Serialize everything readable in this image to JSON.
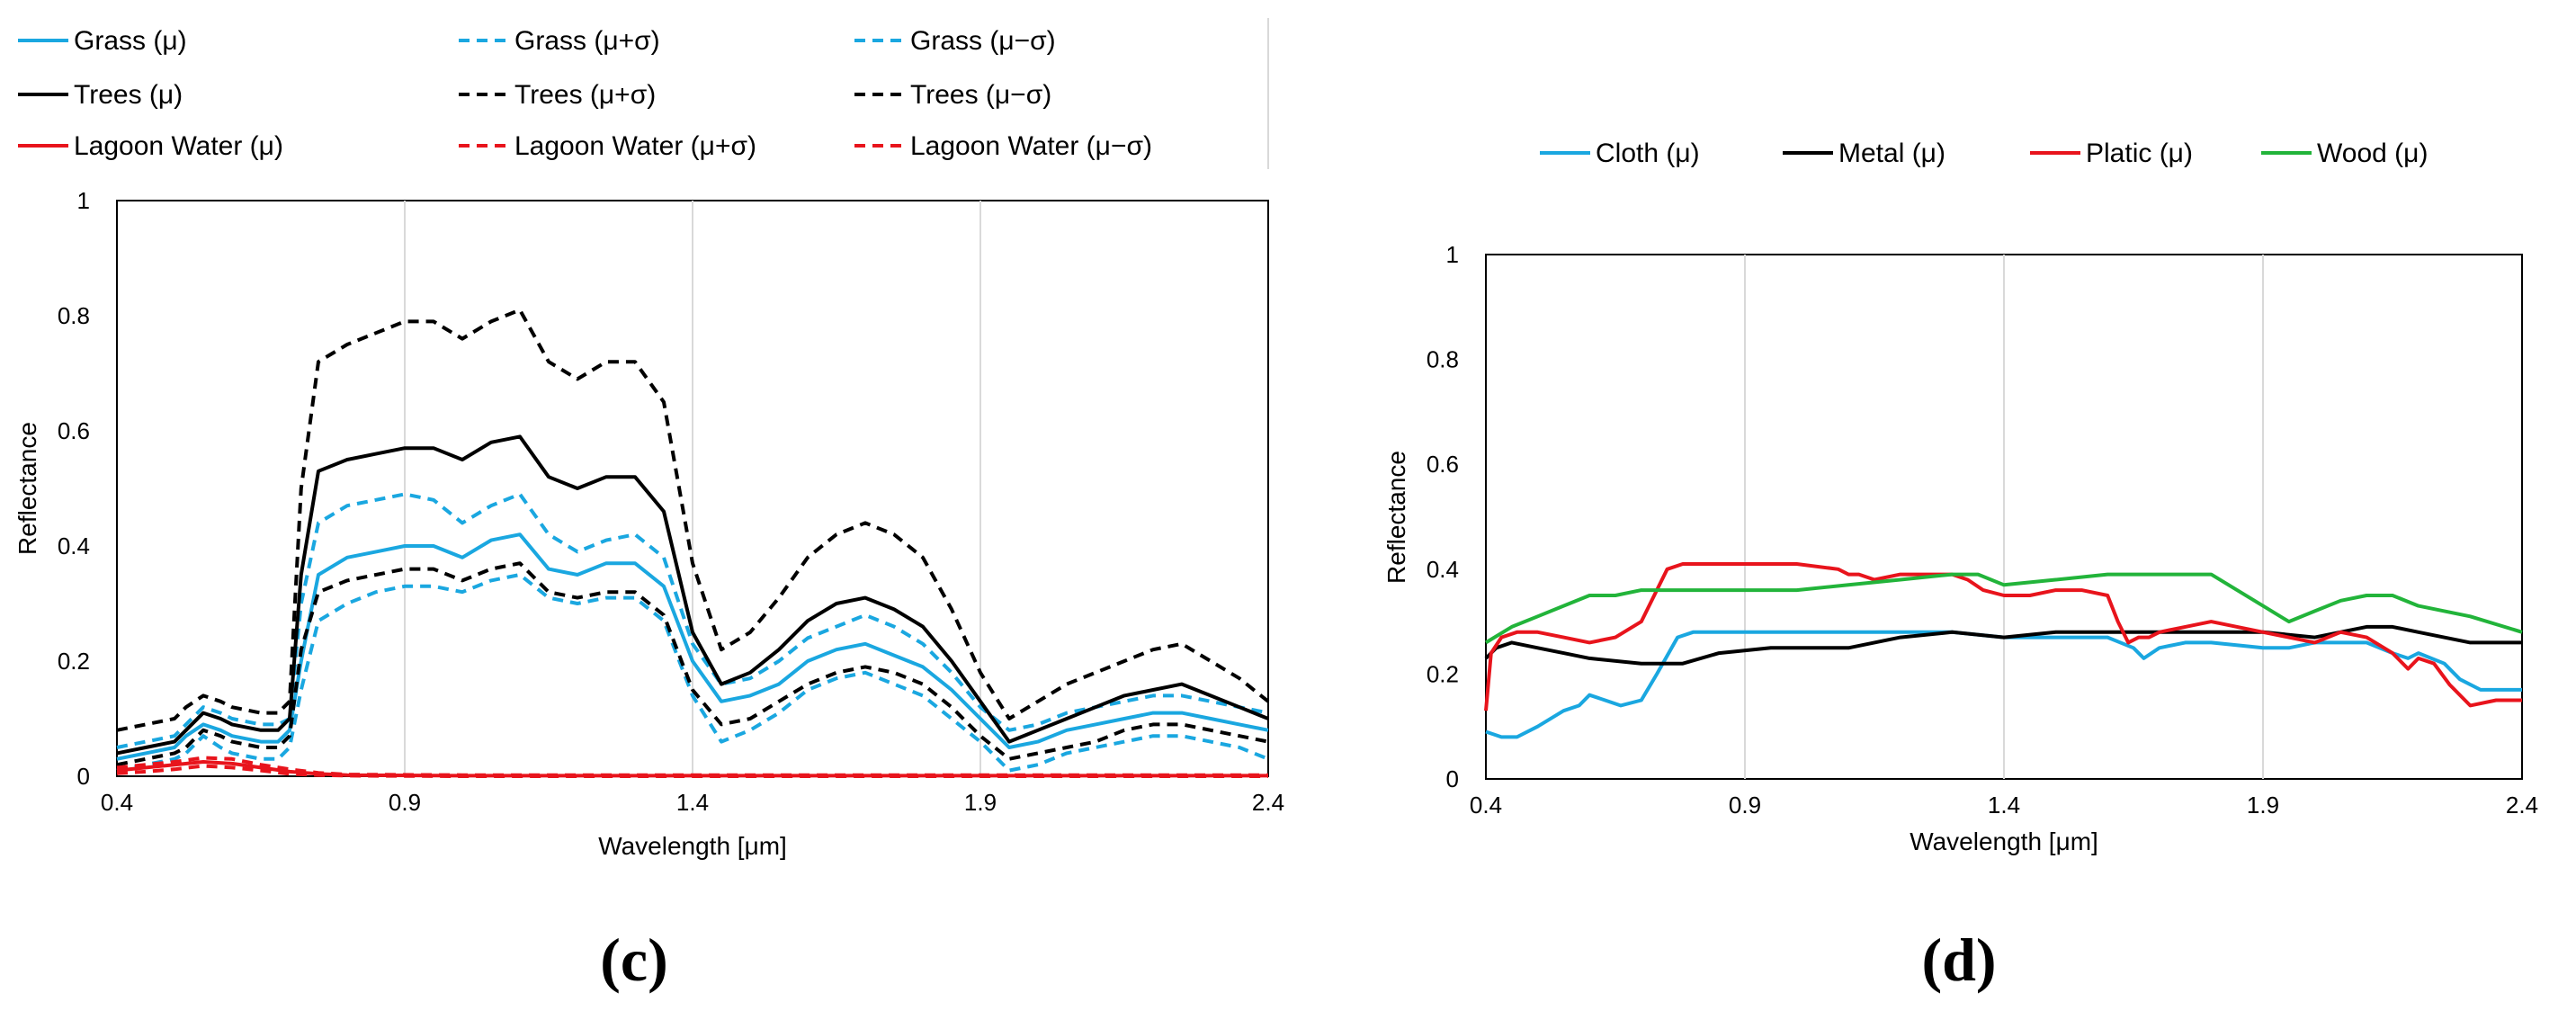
{
  "colors": {
    "grass": "#1aa7e0",
    "trees": "#000000",
    "water": "#e8141c",
    "cloth": "#1aa7e0",
    "metal": "#000000",
    "plastic": "#e8141c",
    "wood": "#22b43a"
  },
  "chart_data": [
    {
      "type": "line",
      "panel_label": "(c)",
      "xlabel": "Wavelength [μm]",
      "ylabel": "Reflectance",
      "xlim": [
        0.4,
        2.4
      ],
      "ylim": [
        0,
        1
      ],
      "xticks": [
        "0.4",
        "0.9",
        "1.4",
        "1.9",
        "2.4"
      ],
      "yticks": [
        "0",
        "0.2",
        "0.4",
        "0.6",
        "0.8",
        "1"
      ],
      "legend": [
        "Grass (μ)",
        "Grass (μ+σ)",
        "Grass (μ−σ)",
        "Trees (μ)",
        "Trees (μ+σ)",
        "Trees (μ−σ)",
        "Lagoon Water (μ)",
        "Lagoon Water (μ+σ)",
        "Lagoon Water (μ−σ)"
      ],
      "series": [
        {
          "name": "Grass (μ)",
          "color": "grass",
          "dash": false,
          "x": [
            0.4,
            0.45,
            0.5,
            0.52,
            0.55,
            0.58,
            0.6,
            0.65,
            0.68,
            0.7,
            0.72,
            0.75,
            0.8,
            0.85,
            0.9,
            0.95,
            1.0,
            1.05,
            1.1,
            1.15,
            1.2,
            1.25,
            1.3,
            1.35,
            1.4,
            1.45,
            1.5,
            1.55,
            1.6,
            1.65,
            1.7,
            1.75,
            1.8,
            1.85,
            1.9,
            1.95,
            2.0,
            2.05,
            2.1,
            2.15,
            2.2,
            2.25,
            2.3,
            2.35,
            2.4
          ],
          "y": [
            0.03,
            0.04,
            0.05,
            0.07,
            0.09,
            0.08,
            0.07,
            0.06,
            0.06,
            0.08,
            0.2,
            0.35,
            0.38,
            0.39,
            0.4,
            0.4,
            0.38,
            0.41,
            0.42,
            0.36,
            0.35,
            0.37,
            0.37,
            0.33,
            0.2,
            0.13,
            0.14,
            0.16,
            0.2,
            0.22,
            0.23,
            0.21,
            0.19,
            0.15,
            0.1,
            0.05,
            0.06,
            0.08,
            0.09,
            0.1,
            0.11,
            0.11,
            0.1,
            0.09,
            0.08
          ]
        },
        {
          "name": "Grass (μ+σ)",
          "color": "grass",
          "dash": true,
          "x": [
            0.4,
            0.45,
            0.5,
            0.52,
            0.55,
            0.58,
            0.6,
            0.65,
            0.68,
            0.7,
            0.72,
            0.75,
            0.8,
            0.85,
            0.9,
            0.95,
            1.0,
            1.05,
            1.1,
            1.15,
            1.2,
            1.25,
            1.3,
            1.35,
            1.4,
            1.45,
            1.5,
            1.55,
            1.6,
            1.65,
            1.7,
            1.75,
            1.8,
            1.85,
            1.9,
            1.95,
            2.0,
            2.05,
            2.1,
            2.15,
            2.2,
            2.25,
            2.3,
            2.35,
            2.4
          ],
          "y": [
            0.05,
            0.06,
            0.07,
            0.09,
            0.12,
            0.11,
            0.1,
            0.09,
            0.09,
            0.1,
            0.3,
            0.44,
            0.47,
            0.48,
            0.49,
            0.48,
            0.44,
            0.47,
            0.49,
            0.42,
            0.39,
            0.41,
            0.42,
            0.38,
            0.23,
            0.16,
            0.17,
            0.2,
            0.24,
            0.26,
            0.28,
            0.26,
            0.23,
            0.18,
            0.12,
            0.08,
            0.09,
            0.11,
            0.12,
            0.13,
            0.14,
            0.14,
            0.13,
            0.12,
            0.11
          ]
        },
        {
          "name": "Grass (μ−σ)",
          "color": "grass",
          "dash": true,
          "x": [
            0.4,
            0.45,
            0.5,
            0.52,
            0.55,
            0.58,
            0.6,
            0.65,
            0.68,
            0.7,
            0.72,
            0.75,
            0.8,
            0.85,
            0.9,
            0.95,
            1.0,
            1.05,
            1.1,
            1.15,
            1.2,
            1.25,
            1.3,
            1.35,
            1.4,
            1.45,
            1.5,
            1.55,
            1.6,
            1.65,
            1.7,
            1.75,
            1.8,
            1.85,
            1.9,
            1.95,
            2.0,
            2.05,
            2.1,
            2.15,
            2.2,
            2.25,
            2.3,
            2.35,
            2.4
          ],
          "y": [
            0.01,
            0.02,
            0.03,
            0.04,
            0.07,
            0.05,
            0.04,
            0.03,
            0.03,
            0.05,
            0.15,
            0.27,
            0.3,
            0.32,
            0.33,
            0.33,
            0.32,
            0.34,
            0.35,
            0.31,
            0.3,
            0.31,
            0.31,
            0.27,
            0.14,
            0.06,
            0.08,
            0.11,
            0.15,
            0.17,
            0.18,
            0.16,
            0.14,
            0.1,
            0.06,
            0.01,
            0.02,
            0.04,
            0.05,
            0.06,
            0.07,
            0.07,
            0.06,
            0.05,
            0.03
          ]
        },
        {
          "name": "Trees (μ)",
          "color": "trees",
          "dash": false,
          "x": [
            0.4,
            0.45,
            0.5,
            0.52,
            0.55,
            0.58,
            0.6,
            0.65,
            0.68,
            0.7,
            0.72,
            0.75,
            0.8,
            0.85,
            0.9,
            0.95,
            1.0,
            1.05,
            1.1,
            1.15,
            1.2,
            1.25,
            1.3,
            1.35,
            1.4,
            1.45,
            1.5,
            1.55,
            1.6,
            1.65,
            1.7,
            1.75,
            1.8,
            1.85,
            1.9,
            1.95,
            2.0,
            2.05,
            2.1,
            2.15,
            2.2,
            2.25,
            2.3,
            2.35,
            2.4
          ],
          "y": [
            0.04,
            0.05,
            0.06,
            0.08,
            0.11,
            0.1,
            0.09,
            0.08,
            0.08,
            0.1,
            0.35,
            0.53,
            0.55,
            0.56,
            0.57,
            0.57,
            0.55,
            0.58,
            0.59,
            0.52,
            0.5,
            0.52,
            0.52,
            0.46,
            0.25,
            0.16,
            0.18,
            0.22,
            0.27,
            0.3,
            0.31,
            0.29,
            0.26,
            0.2,
            0.13,
            0.06,
            0.08,
            0.1,
            0.12,
            0.14,
            0.15,
            0.16,
            0.14,
            0.12,
            0.1
          ]
        },
        {
          "name": "Trees (μ+σ)",
          "color": "trees",
          "dash": true,
          "x": [
            0.4,
            0.45,
            0.5,
            0.52,
            0.55,
            0.58,
            0.6,
            0.65,
            0.68,
            0.7,
            0.72,
            0.75,
            0.8,
            0.85,
            0.9,
            0.95,
            1.0,
            1.05,
            1.1,
            1.15,
            1.2,
            1.25,
            1.3,
            1.35,
            1.4,
            1.45,
            1.5,
            1.55,
            1.6,
            1.65,
            1.7,
            1.75,
            1.8,
            1.85,
            1.9,
            1.95,
            2.0,
            2.05,
            2.1,
            2.15,
            2.2,
            2.25,
            2.3,
            2.35,
            2.4
          ],
          "y": [
            0.08,
            0.09,
            0.1,
            0.12,
            0.14,
            0.13,
            0.12,
            0.11,
            0.11,
            0.13,
            0.5,
            0.72,
            0.75,
            0.77,
            0.79,
            0.79,
            0.76,
            0.79,
            0.81,
            0.72,
            0.69,
            0.72,
            0.72,
            0.65,
            0.37,
            0.22,
            0.25,
            0.31,
            0.38,
            0.42,
            0.44,
            0.42,
            0.38,
            0.29,
            0.18,
            0.1,
            0.13,
            0.16,
            0.18,
            0.2,
            0.22,
            0.23,
            0.2,
            0.17,
            0.13
          ]
        },
        {
          "name": "Trees (μ−σ)",
          "color": "trees",
          "dash": true,
          "x": [
            0.4,
            0.45,
            0.5,
            0.52,
            0.55,
            0.58,
            0.6,
            0.65,
            0.68,
            0.7,
            0.72,
            0.75,
            0.8,
            0.85,
            0.9,
            0.95,
            1.0,
            1.05,
            1.1,
            1.15,
            1.2,
            1.25,
            1.3,
            1.35,
            1.4,
            1.45,
            1.5,
            1.55,
            1.6,
            1.65,
            1.7,
            1.75,
            1.8,
            1.85,
            1.9,
            1.95,
            2.0,
            2.05,
            2.1,
            2.15,
            2.2,
            2.25,
            2.3,
            2.35,
            2.4
          ],
          "y": [
            0.02,
            0.03,
            0.04,
            0.05,
            0.08,
            0.07,
            0.06,
            0.05,
            0.05,
            0.07,
            0.22,
            0.32,
            0.34,
            0.35,
            0.36,
            0.36,
            0.34,
            0.36,
            0.37,
            0.32,
            0.31,
            0.32,
            0.32,
            0.28,
            0.15,
            0.09,
            0.1,
            0.13,
            0.16,
            0.18,
            0.19,
            0.18,
            0.16,
            0.12,
            0.07,
            0.03,
            0.04,
            0.05,
            0.06,
            0.08,
            0.09,
            0.09,
            0.08,
            0.07,
            0.06
          ]
        },
        {
          "name": "Lagoon Water (μ)",
          "color": "water",
          "dash": false,
          "x": [
            0.4,
            0.45,
            0.5,
            0.55,
            0.6,
            0.65,
            0.7,
            0.75,
            0.8,
            1.0,
            1.5,
            2.0,
            2.4
          ],
          "y": [
            0.01,
            0.015,
            0.02,
            0.025,
            0.022,
            0.015,
            0.008,
            0.004,
            0.002,
            0.001,
            0.001,
            0.001,
            0.001
          ]
        },
        {
          "name": "Lagoon Water (μ+σ)",
          "color": "water",
          "dash": true,
          "x": [
            0.4,
            0.45,
            0.5,
            0.55,
            0.6,
            0.65,
            0.7,
            0.75,
            0.8,
            1.0,
            1.5,
            2.0,
            2.4
          ],
          "y": [
            0.015,
            0.02,
            0.025,
            0.032,
            0.03,
            0.02,
            0.012,
            0.006,
            0.003,
            0.002,
            0.002,
            0.002,
            0.002
          ]
        },
        {
          "name": "Lagoon Water (μ−σ)",
          "color": "water",
          "dash": true,
          "x": [
            0.4,
            0.45,
            0.5,
            0.55,
            0.6,
            0.65,
            0.7,
            0.75,
            0.8,
            1.0,
            1.5,
            2.0,
            2.4
          ],
          "y": [
            0.005,
            0.008,
            0.012,
            0.018,
            0.015,
            0.01,
            0.004,
            0.002,
            0.001,
            0.0,
            0.0,
            0.0,
            0.0
          ]
        }
      ]
    },
    {
      "type": "line",
      "panel_label": "(d)",
      "xlabel": "Wavelength [μm]",
      "ylabel": "Reflectance",
      "xlim": [
        0.4,
        2.4
      ],
      "ylim": [
        0,
        1
      ],
      "xticks": [
        "0.4",
        "0.9",
        "1.4",
        "1.9",
        "2.4"
      ],
      "yticks": [
        "0",
        "0.2",
        "0.4",
        "0.6",
        "0.8",
        "1"
      ],
      "legend": [
        "Cloth (μ)",
        "Metal (μ)",
        "Platic (μ)",
        "Wood (μ)"
      ],
      "series": [
        {
          "name": "Cloth (μ)",
          "color": "cloth",
          "dash": false,
          "x": [
            0.4,
            0.43,
            0.46,
            0.5,
            0.55,
            0.58,
            0.6,
            0.63,
            0.66,
            0.7,
            0.73,
            0.77,
            0.8,
            0.85,
            0.9,
            1.0,
            1.1,
            1.2,
            1.3,
            1.4,
            1.5,
            1.6,
            1.65,
            1.67,
            1.7,
            1.75,
            1.8,
            1.9,
            1.95,
            2.0,
            2.1,
            2.15,
            2.18,
            2.2,
            2.25,
            2.28,
            2.32,
            2.36,
            2.4
          ],
          "y": [
            0.09,
            0.08,
            0.08,
            0.1,
            0.13,
            0.14,
            0.16,
            0.15,
            0.14,
            0.15,
            0.2,
            0.27,
            0.28,
            0.28,
            0.28,
            0.28,
            0.28,
            0.28,
            0.28,
            0.27,
            0.27,
            0.27,
            0.25,
            0.23,
            0.25,
            0.26,
            0.26,
            0.25,
            0.25,
            0.26,
            0.26,
            0.24,
            0.23,
            0.24,
            0.22,
            0.19,
            0.17,
            0.17,
            0.17
          ]
        },
        {
          "name": "Metal (μ)",
          "color": "metal",
          "dash": false,
          "x": [
            0.4,
            0.42,
            0.45,
            0.5,
            0.55,
            0.6,
            0.7,
            0.78,
            0.85,
            0.95,
            1.05,
            1.1,
            1.15,
            1.2,
            1.3,
            1.4,
            1.5,
            1.6,
            1.7,
            1.8,
            1.9,
            2.0,
            2.1,
            2.15,
            2.2,
            2.3,
            2.4
          ],
          "y": [
            0.23,
            0.25,
            0.26,
            0.25,
            0.24,
            0.23,
            0.22,
            0.22,
            0.24,
            0.25,
            0.25,
            0.25,
            0.26,
            0.27,
            0.28,
            0.27,
            0.28,
            0.28,
            0.28,
            0.28,
            0.28,
            0.27,
            0.29,
            0.29,
            0.28,
            0.26,
            0.26
          ]
        },
        {
          "name": "Platic (μ)",
          "color": "plastic",
          "dash": false,
          "x": [
            0.4,
            0.41,
            0.43,
            0.46,
            0.5,
            0.55,
            0.6,
            0.65,
            0.7,
            0.75,
            0.78,
            0.8,
            0.9,
            1.0,
            1.08,
            1.1,
            1.12,
            1.15,
            1.2,
            1.25,
            1.3,
            1.33,
            1.36,
            1.4,
            1.45,
            1.5,
            1.55,
            1.6,
            1.62,
            1.64,
            1.66,
            1.68,
            1.7,
            1.75,
            1.8,
            1.9,
            2.0,
            2.05,
            2.1,
            2.15,
            2.18,
            2.2,
            2.23,
            2.26,
            2.3,
            2.35,
            2.4
          ],
          "y": [
            0.13,
            0.24,
            0.27,
            0.28,
            0.28,
            0.27,
            0.26,
            0.27,
            0.3,
            0.4,
            0.41,
            0.41,
            0.41,
            0.41,
            0.4,
            0.39,
            0.39,
            0.38,
            0.39,
            0.39,
            0.39,
            0.38,
            0.36,
            0.35,
            0.35,
            0.36,
            0.36,
            0.35,
            0.3,
            0.26,
            0.27,
            0.27,
            0.28,
            0.29,
            0.3,
            0.28,
            0.26,
            0.28,
            0.27,
            0.24,
            0.21,
            0.23,
            0.22,
            0.18,
            0.14,
            0.15,
            0.15
          ]
        },
        {
          "name": "Wood (μ)",
          "color": "wood",
          "dash": false,
          "x": [
            0.4,
            0.45,
            0.5,
            0.55,
            0.6,
            0.65,
            0.7,
            0.8,
            0.9,
            1.0,
            1.1,
            1.2,
            1.3,
            1.35,
            1.4,
            1.5,
            1.6,
            1.7,
            1.8,
            1.85,
            1.9,
            1.95,
            2.0,
            2.05,
            2.1,
            2.15,
            2.2,
            2.3,
            2.4
          ],
          "y": [
            0.26,
            0.29,
            0.31,
            0.33,
            0.35,
            0.35,
            0.36,
            0.36,
            0.36,
            0.36,
            0.37,
            0.38,
            0.39,
            0.39,
            0.37,
            0.38,
            0.39,
            0.39,
            0.39,
            0.36,
            0.33,
            0.3,
            0.32,
            0.34,
            0.35,
            0.35,
            0.33,
            0.31,
            0.28
          ]
        }
      ]
    }
  ]
}
